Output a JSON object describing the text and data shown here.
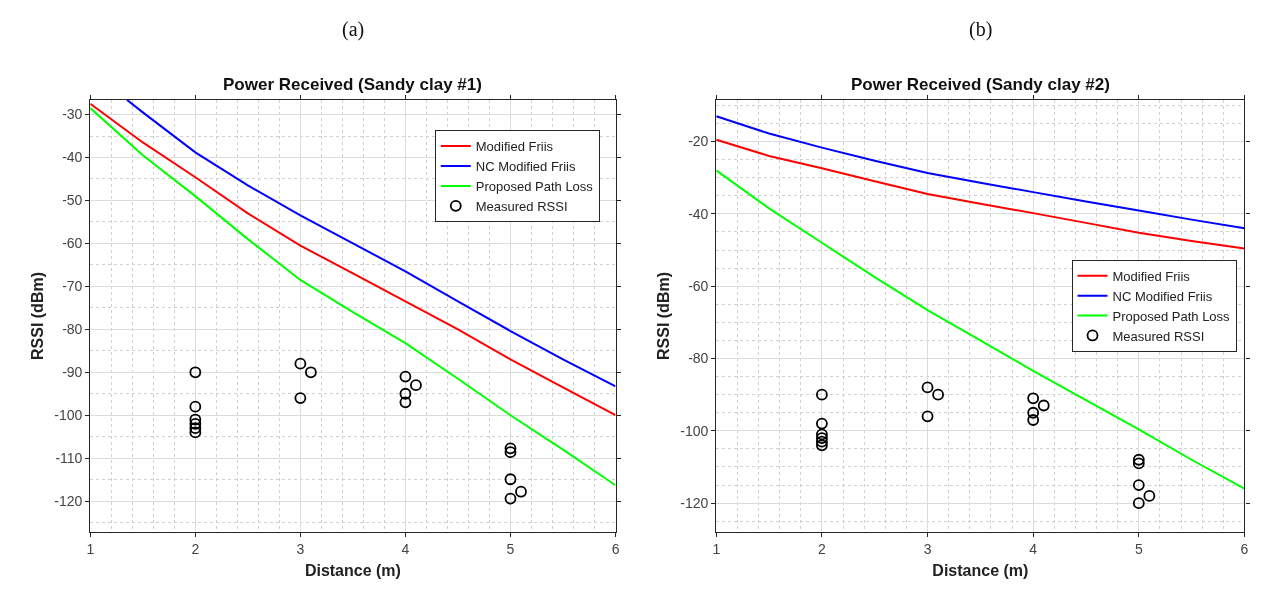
{
  "chart_data": [
    {
      "type": "line",
      "title": "Power Received (Sandy clay #1)",
      "xlabel": "Distance (m)",
      "ylabel": "RSSI (dBm)",
      "annotations": [
        "(a)"
      ],
      "xlim": [
        1,
        6
      ],
      "xticks": [
        1,
        2,
        3,
        4,
        5,
        6
      ],
      "ylim": [
        -127.2,
        -26.6
      ],
      "yticks": [
        -120,
        -110,
        -100,
        -90,
        -80,
        -70,
        -60,
        -50,
        -40,
        -30
      ],
      "grid": true,
      "legend": "top right",
      "series": [
        {
          "name": "Modified Friis",
          "color": "#ff0000",
          "marker": "none",
          "x": [
            1,
            1.5,
            2,
            2.5,
            3,
            3.5,
            4,
            4.5,
            5,
            5.5,
            6
          ],
          "values": [
            -27.5,
            -36.5,
            -44.6,
            -53,
            -60.5,
            -67,
            -73.5,
            -80,
            -87,
            -93.5,
            -100
          ]
        },
        {
          "name": "NC Modified Friis",
          "color": "#0000ff",
          "marker": "none",
          "x": [
            1.35,
            1.5,
            2,
            2.5,
            3,
            3.5,
            4,
            4.5,
            5,
            5.5,
            6
          ],
          "values": [
            -26.6,
            -29.5,
            -38.8,
            -46.5,
            -53.5,
            -60,
            -66.5,
            -73.5,
            -80.4,
            -87,
            -93.3
          ]
        },
        {
          "name": "Proposed Path Loss",
          "color": "#00ff00",
          "marker": "none",
          "x": [
            1,
            1.5,
            2,
            2.5,
            3,
            3.5,
            4,
            4.5,
            5,
            5.5,
            6
          ],
          "values": [
            -28.5,
            -39.5,
            -49,
            -59,
            -68.5,
            -76,
            -83.2,
            -91.5,
            -100,
            -108,
            -116.3
          ]
        },
        {
          "name": "Measured RSSI",
          "color": "#000000",
          "type": "scatter",
          "marker": "circle",
          "x": [
            2,
            2,
            2,
            2,
            2,
            2,
            3,
            3,
            3.1,
            4,
            4,
            4,
            4.1,
            5,
            5,
            5,
            5,
            5.1
          ],
          "values": [
            -90,
            -98,
            -101,
            -102,
            -103,
            -104,
            -88,
            -96,
            -90,
            -91,
            -95,
            -97,
            -93,
            -107.7,
            -108.6,
            -114.9,
            -119.4,
            -117.8
          ]
        }
      ]
    },
    {
      "type": "line",
      "title": "Power Received (Sandy clay #2)",
      "xlabel": "Distance (m)",
      "ylabel": "RSSI (dBm)",
      "annotations": [
        "(b)"
      ],
      "xlim": [
        1,
        6
      ],
      "xticks": [
        1,
        2,
        3,
        4,
        5,
        6
      ],
      "ylim": [
        -128,
        -8.5
      ],
      "yticks": [
        -120,
        -100,
        -80,
        -60,
        -40,
        -20
      ],
      "grid": true,
      "legend": "right",
      "series": [
        {
          "name": "Modified Friis",
          "color": "#ff0000",
          "marker": "none",
          "x": [
            1,
            1.5,
            2,
            2.5,
            3,
            3.5,
            4,
            4.5,
            5,
            5.5,
            6
          ],
          "values": [
            -19.5,
            -24,
            -27.4,
            -31,
            -34.5,
            -37.2,
            -39.8,
            -42.5,
            -45.2,
            -47.5,
            -49.6
          ]
        },
        {
          "name": "NC Modified Friis",
          "color": "#0000ff",
          "marker": "none",
          "x": [
            1,
            1.5,
            2,
            2.5,
            3,
            3.5,
            4,
            4.5,
            5,
            5.5,
            6
          ],
          "values": [
            -13,
            -17.8,
            -21.7,
            -25.3,
            -28.7,
            -31.4,
            -34,
            -36.6,
            -39.1,
            -41.6,
            -44
          ]
        },
        {
          "name": "Proposed Path Loss",
          "color": "#00ff00",
          "marker": "none",
          "x": [
            1,
            1.5,
            2,
            2.5,
            3,
            3.5,
            4,
            4.5,
            5,
            5.5,
            6
          ],
          "values": [
            -28,
            -38.5,
            -48,
            -57.5,
            -66.6,
            -75,
            -83.4,
            -91.5,
            -99.6,
            -108,
            -116
          ]
        },
        {
          "name": "Measured RSSI",
          "color": "#000000",
          "type": "scatter",
          "marker": "circle",
          "x": [
            2,
            2,
            2,
            2,
            2,
            2,
            3,
            3,
            3.1,
            4,
            4,
            4,
            4.1,
            5,
            5,
            5,
            5,
            5.1
          ],
          "values": [
            -90,
            -98,
            -101,
            -102,
            -103,
            -104,
            -88,
            -96,
            -90,
            -91,
            -95,
            -97,
            -93,
            -108,
            -109,
            -115,
            -120,
            -118
          ]
        }
      ]
    }
  ]
}
